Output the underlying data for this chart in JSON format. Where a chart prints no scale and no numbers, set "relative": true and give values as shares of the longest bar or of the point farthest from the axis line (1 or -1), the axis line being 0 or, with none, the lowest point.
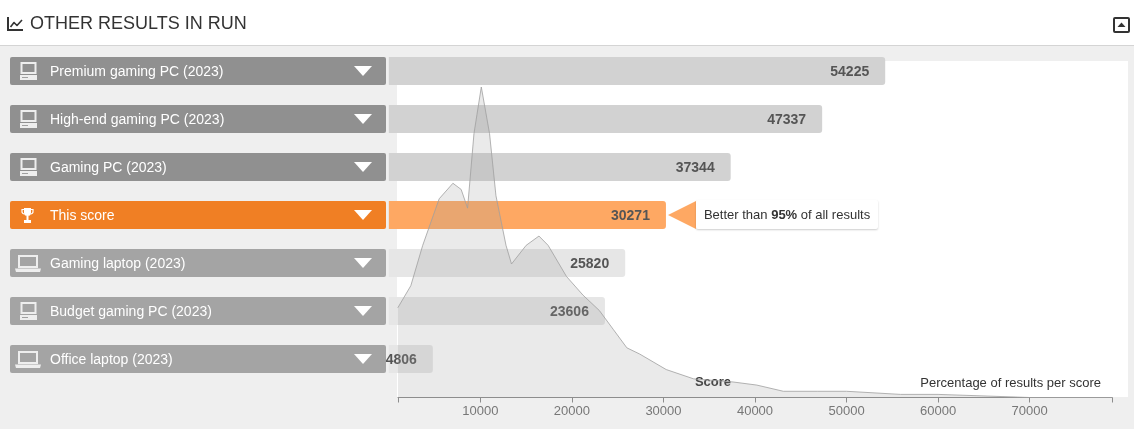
{
  "chart_data": [
    {
      "type": "bar",
      "orientation": "horizontal",
      "title": "OTHER RESULTS IN RUN",
      "categories": [
        "Premium gaming PC (2023)",
        "High-end gaming PC (2023)",
        "Gaming PC (2023)",
        "This score",
        "Gaming laptop (2023)",
        "Budget gaming PC (2023)",
        "Office laptop (2023)"
      ],
      "values": [
        54225,
        47337,
        37344,
        30271,
        25820,
        23606,
        4806
      ],
      "colors": [
        "#d2d2d2",
        "#d2d2d2",
        "#d2d2d2",
        "#fea863",
        "#e6e6e6",
        "#e6e6e6",
        "#e6e6e6"
      ],
      "xlim": [
        1000,
        79000
      ],
      "tick_labels": "y",
      "data_labels": true,
      "annotations": [
        {
          "text": "Better than 95% of all results",
          "x": 30271,
          "y": "This score"
        }
      ]
    },
    {
      "type": "area",
      "relative": true,
      "xlabel": "Score",
      "ylabel": "Percentage of results per score",
      "color": "#a0a0a0",
      "xlim": [
        1000,
        79000
      ],
      "xticks": [
        {
          "value": 1000,
          "label": null
        },
        10000,
        20000,
        30000,
        40000,
        50000,
        60000,
        70000,
        {
          "value": 79000,
          "label": null
        }
      ],
      "x": [
        1000,
        2400,
        3700,
        5500,
        7000,
        7900,
        8600,
        9300,
        10100,
        11000,
        11700,
        12800,
        13400,
        15000,
        16400,
        17400,
        19400,
        21200,
        23000,
        24500,
        26000,
        27400,
        30300,
        33300,
        37600,
        40200,
        43100,
        46800,
        50000,
        55900,
        60000,
        70000,
        79000
      ],
      "values": [
        0.29,
        0.36,
        0.49,
        0.64,
        0.69,
        0.67,
        0.61,
        0.85,
        1,
        0.85,
        0.65,
        0.49,
        0.43,
        0.49,
        0.52,
        0.49,
        0.39,
        0.33,
        0.28,
        0.22,
        0.16,
        0.14,
        0.09,
        0.06,
        0.05,
        0.04,
        0.02,
        0.02,
        0.02,
        0.01,
        0.01,
        0,
        0
      ]
    }
  ]
}
